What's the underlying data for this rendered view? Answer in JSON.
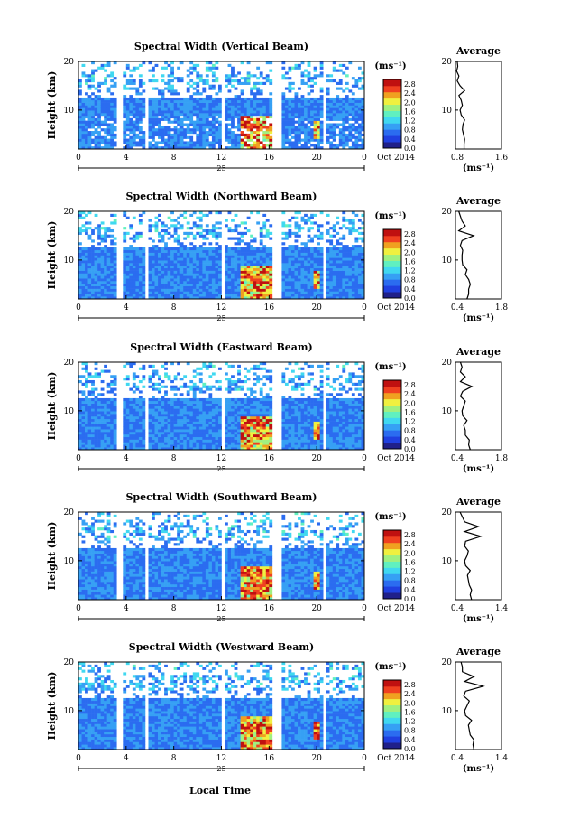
{
  "figure": {
    "x_label": "Local Time",
    "x_ticks": [
      "0",
      "4",
      "8",
      "12",
      "16",
      "20",
      "0"
    ],
    "day_label": "25",
    "date_label": "Oct 2014",
    "y_label": "Height (km)",
    "y_ticks": [
      "20",
      "10"
    ],
    "colorbar_unit": "(ms⁻¹)",
    "colorbar_ticks": [
      "2.8",
      "2.4",
      "2.0",
      "1.6",
      "1.2",
      "0.8",
      "0.4",
      "0.0"
    ],
    "avg_title": "Average",
    "avg_unit": "(ms⁻¹)",
    "colors": {
      "colormap": [
        "#20208a",
        "#2040e0",
        "#2b6cf0",
        "#36a0f4",
        "#40d8f0",
        "#60f0c0",
        "#a0f080",
        "#f0f040",
        "#f0a020",
        "#f04020",
        "#c01010"
      ],
      "gap": "#ffffff"
    }
  },
  "chart_data": [
    {
      "type": "heatmap",
      "title": "Spectral Width (Vertical Beam)",
      "xlabel": "Local Time",
      "ylabel": "Height (km)",
      "xlim": [
        0,
        24
      ],
      "ylim": [
        2,
        20
      ],
      "clim": [
        0.0,
        3.0
      ],
      "data_gaps_hours": [
        [
          3.3,
          3.6
        ],
        [
          5.5,
          5.9
        ],
        [
          11.9,
          12.3
        ],
        [
          16.4,
          17.0
        ],
        [
          18.3,
          18.5
        ],
        [
          20.5,
          20.7
        ]
      ],
      "average_profile": {
        "title": "Average",
        "xlabel": "(ms⁻¹)",
        "xlim": [
          0.8,
          1.6
        ],
        "x_ticks": [
          "0.8",
          "1.6"
        ],
        "y_ticks": [
          "20",
          "10"
        ],
        "height_km": [
          2,
          3,
          4,
          5,
          6,
          7,
          8,
          9,
          10,
          11,
          12,
          13,
          14,
          15,
          16,
          17,
          18,
          19,
          20
        ],
        "value": [
          0.95,
          0.95,
          0.96,
          0.94,
          0.92,
          0.93,
          0.96,
          0.9,
          0.88,
          0.92,
          0.9,
          0.86,
          0.96,
          0.88,
          0.83,
          0.86,
          0.82,
          0.84,
          0.83
        ]
      }
    },
    {
      "type": "heatmap",
      "title": "Spectral Width (Northward Beam)",
      "xlabel": "Local Time",
      "ylabel": "Height (km)",
      "xlim": [
        0,
        24
      ],
      "ylim": [
        2,
        20
      ],
      "clim": [
        0.0,
        3.0
      ],
      "data_gaps_hours": [
        [
          3.3,
          3.6
        ],
        [
          5.5,
          5.9
        ],
        [
          11.9,
          12.3
        ],
        [
          16.4,
          17.0
        ],
        [
          18.3,
          18.5
        ],
        [
          20.5,
          20.7
        ]
      ],
      "average_profile": {
        "title": "Average",
        "xlabel": "(ms⁻¹)",
        "xlim": [
          0.4,
          1.8
        ],
        "x_ticks": [
          "0.4",
          "1.8"
        ],
        "y_ticks": [
          "20",
          "10"
        ],
        "height_km": [
          2,
          3,
          4,
          5,
          6,
          7,
          8,
          9,
          10,
          11,
          12,
          13,
          14,
          15,
          16,
          17,
          18,
          19,
          20
        ],
        "value": [
          0.75,
          0.8,
          0.8,
          0.85,
          0.8,
          0.7,
          0.75,
          0.62,
          0.6,
          0.6,
          0.62,
          0.55,
          0.6,
          0.95,
          0.5,
          0.7,
          0.6,
          0.55,
          0.5
        ]
      }
    },
    {
      "type": "heatmap",
      "title": "Spectral Width (Eastward Beam)",
      "xlabel": "Local Time",
      "ylabel": "Height (km)",
      "xlim": [
        0,
        24
      ],
      "ylim": [
        2,
        20
      ],
      "clim": [
        0.0,
        3.0
      ],
      "data_gaps_hours": [
        [
          3.3,
          3.6
        ],
        [
          5.5,
          5.9
        ],
        [
          11.9,
          12.3
        ],
        [
          16.4,
          17.0
        ],
        [
          18.3,
          18.5
        ],
        [
          20.5,
          20.7
        ]
      ],
      "average_profile": {
        "title": "Average",
        "xlabel": "(ms⁻¹)",
        "xlim": [
          0.4,
          1.8
        ],
        "x_ticks": [
          "0.4",
          "1.8"
        ],
        "y_ticks": [
          "20",
          "10"
        ],
        "height_km": [
          2,
          3,
          4,
          5,
          6,
          7,
          8,
          9,
          10,
          11,
          12,
          13,
          14,
          15,
          16,
          17,
          18,
          19,
          20
        ],
        "value": [
          0.85,
          0.8,
          0.82,
          0.7,
          0.7,
          0.65,
          0.75,
          0.62,
          0.6,
          0.65,
          0.7,
          0.55,
          0.62,
          0.9,
          0.55,
          0.7,
          0.55,
          0.6,
          0.55
        ]
      }
    },
    {
      "type": "heatmap",
      "title": "Spectral Width (Southward Beam)",
      "xlabel": "Local Time",
      "ylabel": "Height (km)",
      "xlim": [
        0,
        24
      ],
      "ylim": [
        2,
        20
      ],
      "clim": [
        0.0,
        3.0
      ],
      "data_gaps_hours": [
        [
          3.3,
          3.6
        ],
        [
          5.5,
          5.9
        ],
        [
          11.9,
          12.3
        ],
        [
          16.4,
          17.0
        ],
        [
          18.3,
          18.5
        ],
        [
          20.5,
          20.7
        ]
      ],
      "average_profile": {
        "title": "Average",
        "xlabel": "(ms⁻¹)",
        "xlim": [
          0.4,
          1.4
        ],
        "x_ticks": [
          "0.4",
          "1.4"
        ],
        "y_ticks": [
          "20",
          "10"
        ],
        "height_km": [
          2,
          3,
          4,
          5,
          6,
          7,
          8,
          9,
          10,
          11,
          12,
          13,
          14,
          15,
          16,
          17,
          18,
          19,
          20
        ],
        "value": [
          0.75,
          0.72,
          0.75,
          0.7,
          0.68,
          0.66,
          0.72,
          0.62,
          0.6,
          0.65,
          0.68,
          0.6,
          0.62,
          0.95,
          0.6,
          0.9,
          0.6,
          0.55,
          0.5
        ]
      }
    },
    {
      "type": "heatmap",
      "title": "Spectral Width (Westward Beam)",
      "xlabel": "Local Time",
      "ylabel": "Height (km)",
      "xlim": [
        0,
        24
      ],
      "ylim": [
        2,
        20
      ],
      "clim": [
        0.0,
        3.0
      ],
      "data_gaps_hours": [
        [
          3.3,
          3.6
        ],
        [
          5.5,
          5.9
        ],
        [
          11.9,
          12.3
        ],
        [
          16.4,
          17.0
        ],
        [
          18.3,
          18.5
        ],
        [
          20.5,
          20.7
        ]
      ],
      "average_profile": {
        "title": "Average",
        "xlabel": "(ms⁻¹)",
        "xlim": [
          0.4,
          1.4
        ],
        "x_ticks": [
          "0.4",
          "1.4"
        ],
        "y_ticks": [
          "20",
          "10"
        ],
        "height_km": [
          2,
          3,
          4,
          5,
          6,
          7,
          8,
          9,
          10,
          11,
          12,
          13,
          14,
          15,
          16,
          17,
          18,
          19,
          20
        ],
        "value": [
          0.8,
          0.78,
          0.8,
          0.72,
          0.7,
          0.68,
          0.75,
          0.62,
          0.6,
          0.65,
          0.7,
          0.58,
          0.62,
          1.0,
          0.6,
          0.8,
          0.55,
          0.55,
          0.52
        ]
      }
    }
  ]
}
